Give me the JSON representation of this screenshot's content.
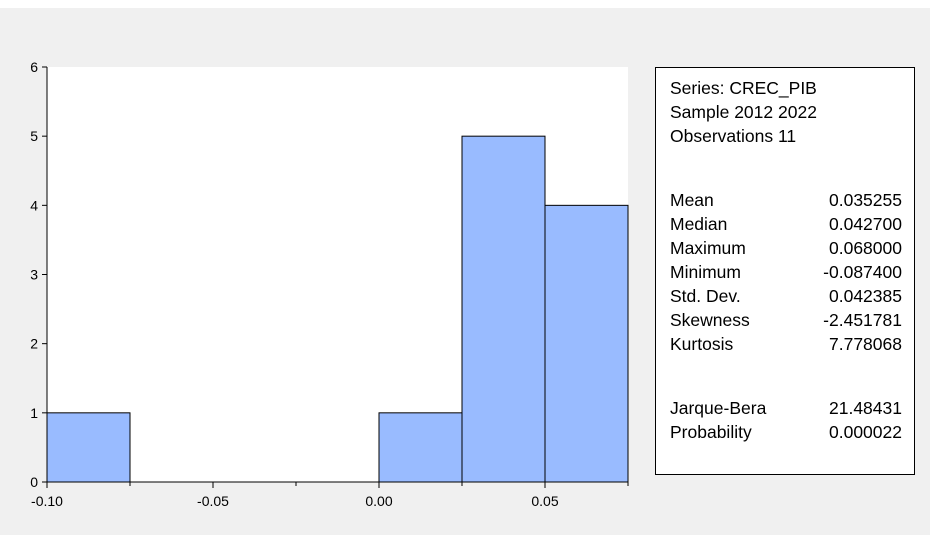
{
  "colors": {
    "bar_fill": "#99bbff",
    "bar_stroke": "#000000",
    "panel_bg": "#f0f0f0",
    "plot_bg": "#ffffff"
  },
  "chart_data": {
    "type": "bar",
    "bins": [
      {
        "x0": -0.1,
        "x1": -0.075,
        "count": 1
      },
      {
        "x0": -0.075,
        "x1": -0.05,
        "count": 0
      },
      {
        "x0": -0.05,
        "x1": -0.025,
        "count": 0
      },
      {
        "x0": -0.025,
        "x1": 0.0,
        "count": 0
      },
      {
        "x0": 0.0,
        "x1": 0.025,
        "count": 1
      },
      {
        "x0": 0.025,
        "x1": 0.05,
        "count": 5
      },
      {
        "x0": 0.05,
        "x1": 0.075,
        "count": 4
      }
    ],
    "xlim": [
      -0.1,
      0.075
    ],
    "ylim": [
      0,
      6
    ],
    "x_ticks": [
      -0.1,
      -0.05,
      0.0,
      0.05
    ],
    "x_tick_labels": [
      "-0.10",
      "-0.05",
      "0.00",
      "0.05"
    ],
    "y_ticks": [
      0,
      1,
      2,
      3,
      4,
      5,
      6
    ],
    "y_tick_labels": [
      "0",
      "1",
      "2",
      "3",
      "4",
      "5",
      "6"
    ],
    "grid": false
  },
  "stats": {
    "series_line": "Series: CREC_PIB",
    "sample_line": "Sample 2012 2022",
    "obs_line": "Observations 11",
    "rows": [
      {
        "label": "Mean",
        "value": "0.035255"
      },
      {
        "label": "Median",
        "value": "0.042700"
      },
      {
        "label": "Maximum",
        "value": "0.068000"
      },
      {
        "label": "Minimum",
        "value": "-0.087400"
      },
      {
        "label": "Std. Dev.",
        "value": "0.042385"
      },
      {
        "label": "Skewness",
        "value": "-2.451781"
      },
      {
        "label": "Kurtosis",
        "value": "7.778068"
      }
    ],
    "test_rows": [
      {
        "label": "Jarque-Bera",
        "value": "21.48431"
      },
      {
        "label": "Probability",
        "value": "0.000022"
      }
    ]
  }
}
